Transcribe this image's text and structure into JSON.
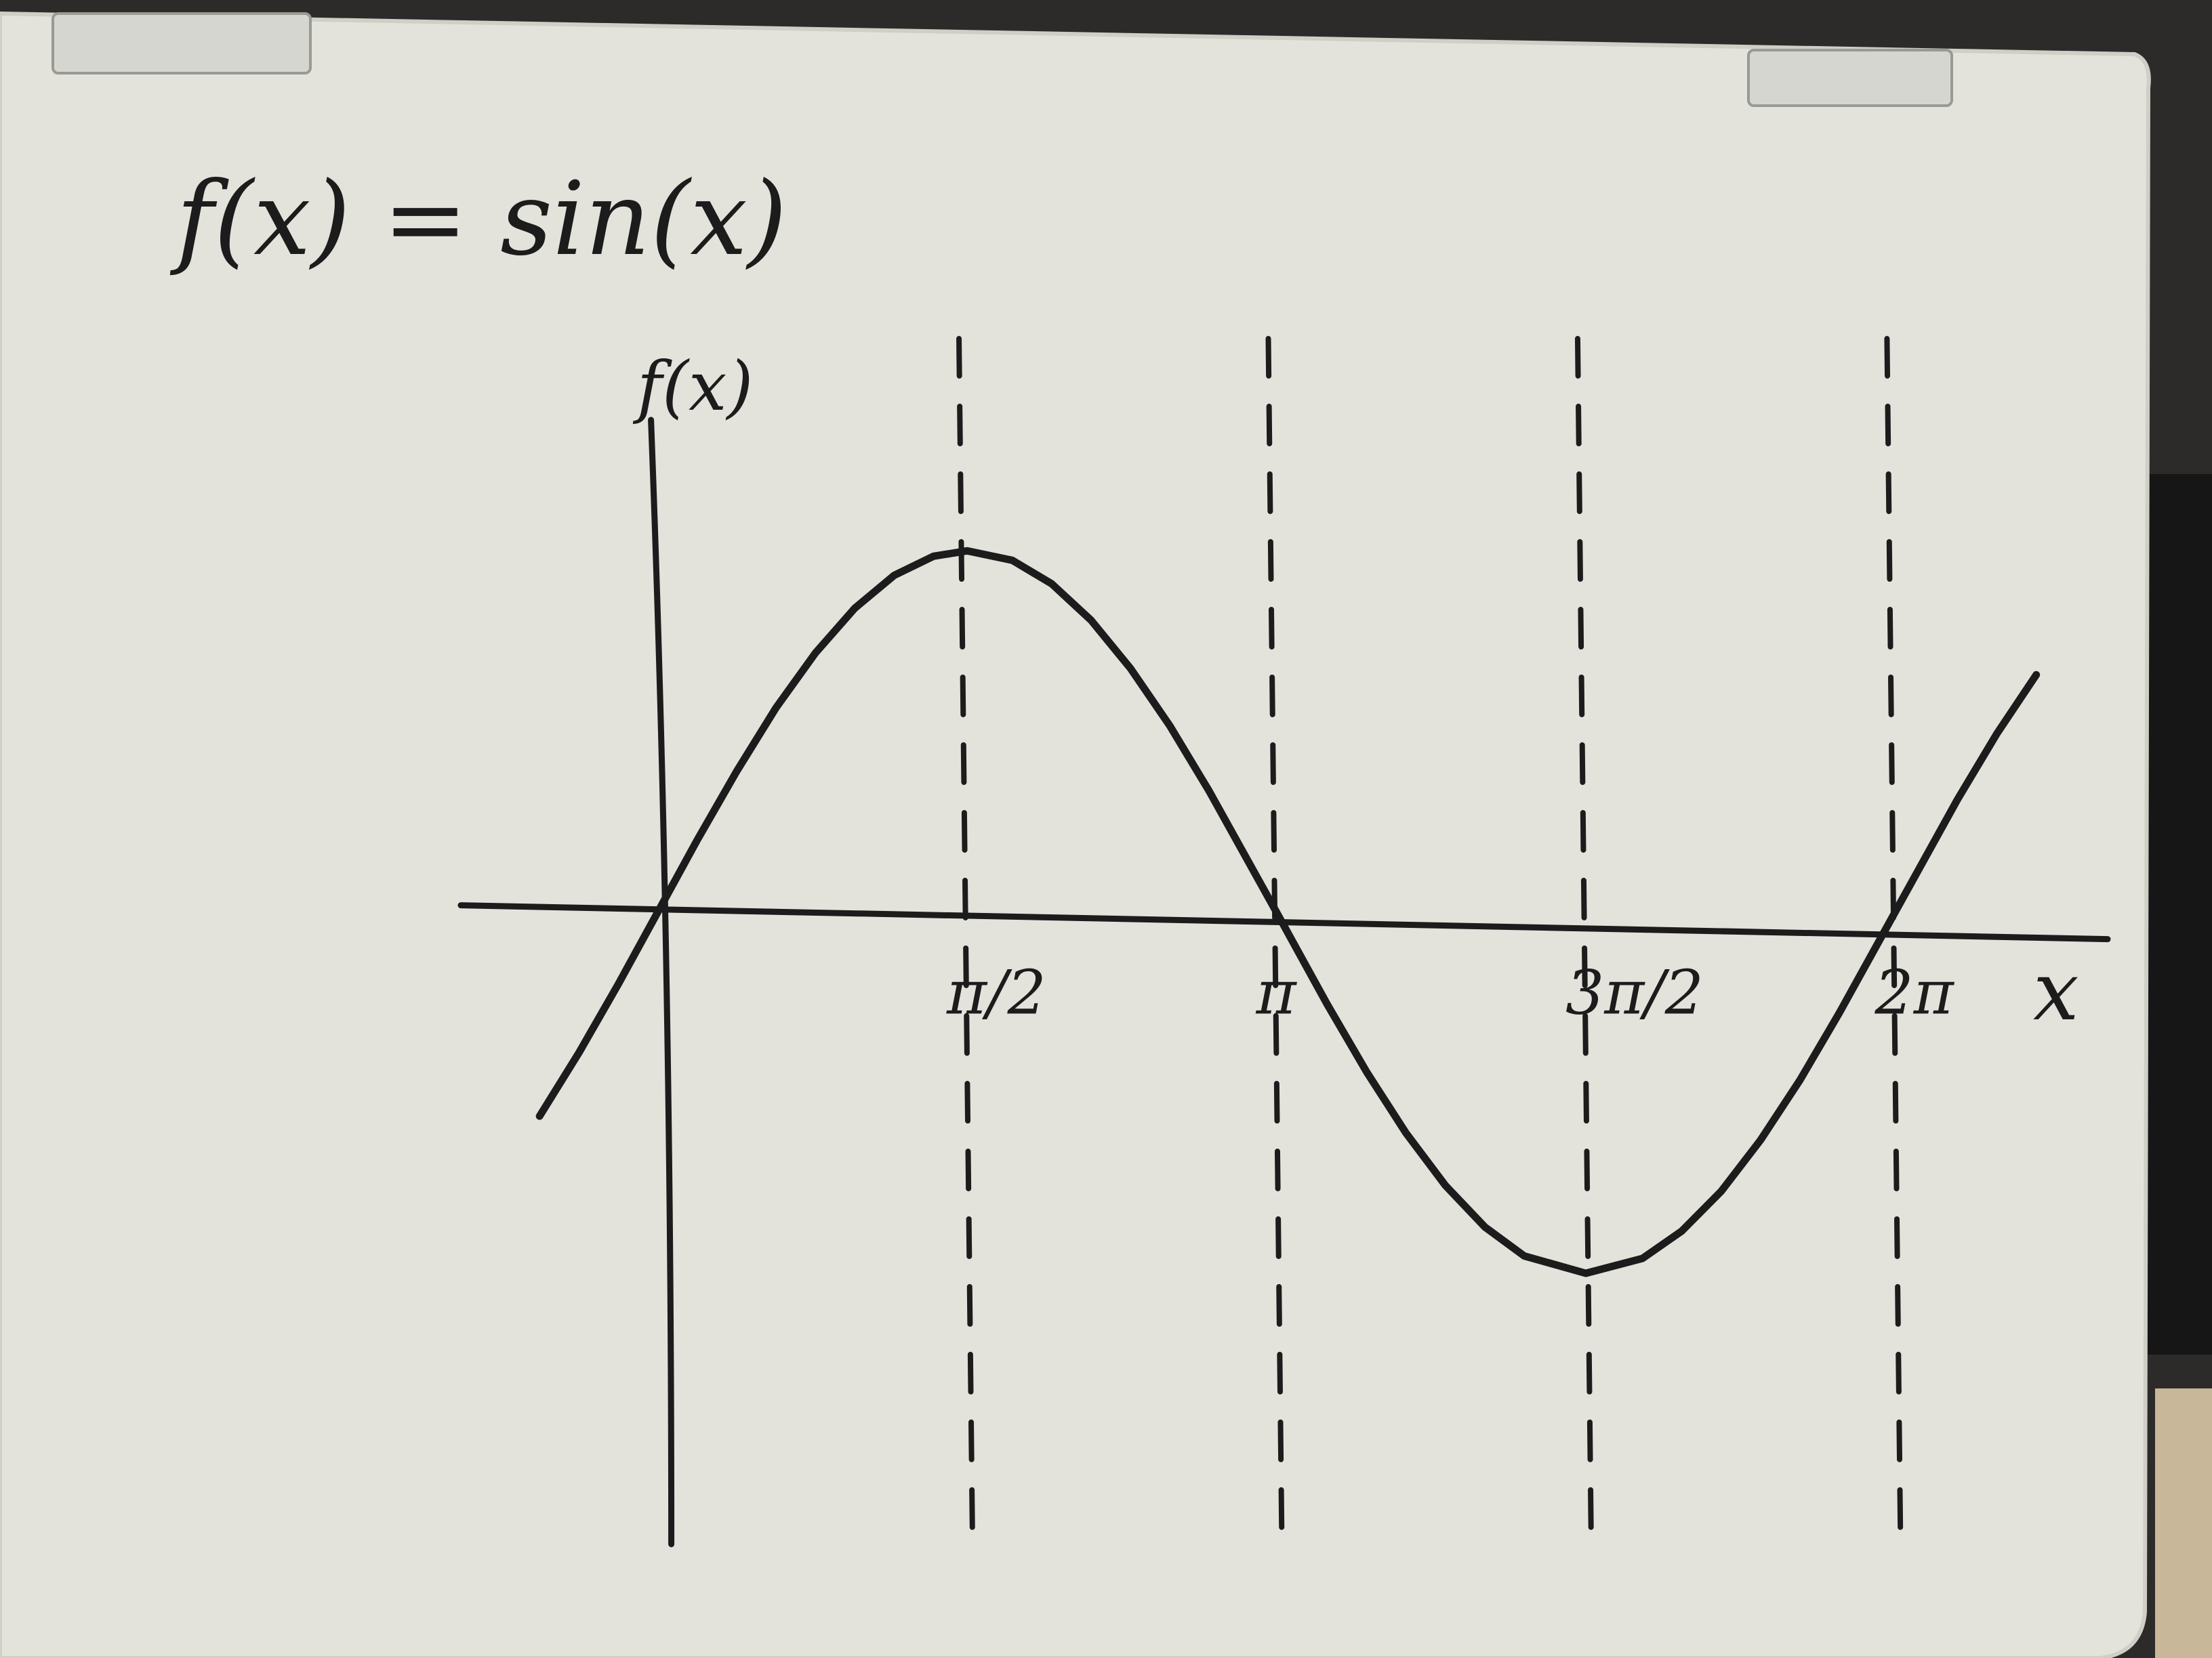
{
  "colors": {
    "board": "#e3e3dc",
    "board_edge": "#cfcfc6",
    "ink": "#1c1c1c",
    "background": "#2d2b2a",
    "keyboard": "#161616"
  },
  "chart_data": {
    "type": "line",
    "title": "f(x) = sin(x)",
    "xlabel": "x",
    "ylabel": "f(x)",
    "series": [
      {
        "x": [
          -0.6,
          -0.4,
          -0.2,
          0,
          0.2,
          0.4,
          0.6,
          0.8,
          1.0,
          1.2,
          1.4,
          1.5708,
          1.8,
          2.0,
          2.2,
          2.4,
          2.6,
          2.8,
          3.1416,
          3.4,
          3.6,
          3.8,
          4.0,
          4.2,
          4.4,
          4.7124,
          5.0,
          5.2,
          5.4,
          5.6,
          5.8,
          6.0,
          6.2832,
          6.6,
          6.8,
          7.0
        ],
        "y": [
          -0.565,
          -0.389,
          -0.199,
          0,
          0.199,
          0.389,
          0.565,
          0.717,
          0.841,
          0.932,
          0.985,
          1,
          0.974,
          0.909,
          0.808,
          0.675,
          0.516,
          0.335,
          0,
          -0.256,
          -0.443,
          -0.612,
          -0.757,
          -0.872,
          -0.952,
          -1,
          -0.959,
          -0.883,
          -0.773,
          -0.631,
          -0.465,
          -0.279,
          0,
          0.312,
          0.494,
          0.657
        ]
      }
    ],
    "vertical_guides": [
      1.5708,
      3.1416,
      4.7124,
      6.2832
    ],
    "tick_labels": [
      {
        "x": 1.5708,
        "label": "π/2"
      },
      {
        "x": 3.1416,
        "label": "π"
      },
      {
        "x": 4.7124,
        "label": "3π/2"
      },
      {
        "x": 6.2832,
        "label": "2π"
      }
    ],
    "xlim": [
      -1.0,
      7.5
    ],
    "ylim": [
      -1.75,
      1.55
    ],
    "grid": false,
    "style": "hand-drawn on whiteboard"
  }
}
